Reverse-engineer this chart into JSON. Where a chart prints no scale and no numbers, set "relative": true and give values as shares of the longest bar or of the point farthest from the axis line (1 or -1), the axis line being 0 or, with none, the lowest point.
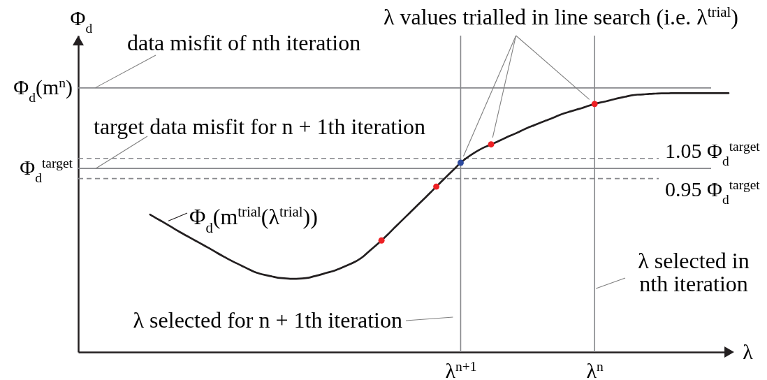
{
  "chart_data": {
    "type": "line",
    "relative": true,
    "xlabel": "λ",
    "ylabel": "Φ$_{d}$",
    "categories": [
      null,
      null,
      null,
      null,
      null,
      null,
      null,
      null,
      null,
      null,
      null,
      null,
      null,
      null,
      null,
      null,
      null,
      null,
      null,
      null,
      null,
      null,
      null,
      null,
      null,
      null,
      null,
      null,
      null,
      null,
      null,
      null,
      null,
      null,
      null,
      null,
      null,
      null,
      null,
      null,
      null,
      null,
      null,
      null,
      null,
      null,
      null,
      null,
      null,
      null,
      null,
      "λ$^{n+1}$",
      null,
      null,
      null,
      null,
      null,
      null,
      null,
      null,
      null,
      null,
      null,
      null,
      null,
      null,
      null,
      null,
      null,
      null,
      null,
      null,
      null,
      "λ$^{n}$",
      null,
      null,
      null,
      null,
      null,
      null,
      null,
      null,
      null,
      null,
      null,
      null,
      null,
      null,
      null,
      null,
      null,
      null,
      null,
      null,
      null,
      null
    ],
    "series": [
      {
        "name": "Φ$_{d}$(m$^{trial}$(λ$^{trial}$))",
        "color": "#231f20",
        "values": [
          0.531,
          0.517,
          0.504,
          0.49,
          0.476,
          0.462,
          0.449,
          0.436,
          0.423,
          0.41,
          0.397,
          0.383,
          0.37,
          0.357,
          0.345,
          0.334,
          0.322,
          0.311,
          0.303,
          0.297,
          0.292,
          0.287,
          0.285,
          0.283,
          0.283,
          0.284,
          0.287,
          0.293,
          0.299,
          0.306,
          0.312,
          0.321,
          0.331,
          0.341,
          0.353,
          0.369,
          0.39,
          0.41,
          0.431,
          0.453,
          0.477,
          0.5,
          0.523,
          0.546,
          0.569,
          0.592,
          0.615,
          0.639,
          0.662,
          0.685,
          0.708,
          0.731,
          0.75,
          0.766,
          0.78,
          0.792,
          0.802,
          0.812,
          0.823,
          0.834,
          0.844,
          0.855,
          0.866,
          0.875,
          0.885,
          0.894,
          0.903,
          0.913,
          0.922,
          0.929,
          0.936,
          0.943,
          0.951,
          0.958,
          0.964,
          0.969,
          0.975,
          0.981,
          0.986,
          0.991,
          0.994,
          0.995,
          0.997,
          0.998,
          0.999,
          0.999,
          1.0,
          1.0,
          1.0,
          1.0,
          1.0,
          1.0,
          1.0,
          1.0,
          1.0,
          1.0
        ]
      },
      {
        "type": "scatter",
        "marker": "circle",
        "color": "#ed2024",
        "values": [
          null,
          null,
          null,
          null,
          null,
          null,
          null,
          null,
          null,
          null,
          null,
          null,
          null,
          null,
          null,
          null,
          null,
          null,
          null,
          null,
          null,
          null,
          null,
          null,
          null,
          null,
          null,
          null,
          null,
          null,
          null,
          null,
          null,
          null,
          null,
          null,
          null,
          null,
          0.431,
          null,
          null,
          null,
          null,
          null,
          null,
          null,
          null,
          0.639,
          null,
          null,
          null,
          null,
          null,
          null,
          null,
          null,
          0.802,
          null,
          null,
          null,
          null,
          null,
          null,
          null,
          null,
          null,
          null,
          null,
          null,
          null,
          null,
          null,
          null,
          0.958,
          null,
          null,
          null,
          null,
          null,
          null,
          null,
          null,
          null,
          null,
          null,
          null,
          null,
          null,
          null,
          null,
          null,
          null,
          null,
          null,
          null,
          null
        ]
      },
      {
        "type": "scatter",
        "marker": "circle",
        "color": "#2e4a9e",
        "values": [
          null,
          null,
          null,
          null,
          null,
          null,
          null,
          null,
          null,
          null,
          null,
          null,
          null,
          null,
          null,
          null,
          null,
          null,
          null,
          null,
          null,
          null,
          null,
          null,
          null,
          null,
          null,
          null,
          null,
          null,
          null,
          null,
          null,
          null,
          null,
          null,
          null,
          null,
          null,
          null,
          null,
          null,
          null,
          null,
          null,
          null,
          null,
          null,
          null,
          null,
          null,
          0.731,
          null,
          null,
          null,
          null,
          null,
          null,
          null,
          null,
          null,
          null,
          null,
          null,
          null,
          null,
          null,
          null,
          null,
          null,
          null,
          null,
          null,
          null,
          null,
          null,
          null,
          null,
          null,
          null,
          null,
          null,
          null,
          null,
          null,
          null,
          null,
          null,
          null,
          null,
          null,
          null,
          null,
          null,
          null,
          null
        ]
      }
    ],
    "ref_lines": [
      {
        "axis": "y",
        "value": 1.02,
        "label": "Φ$_{d}$(m$^{n}$)",
        "color": "#87888c"
      },
      {
        "axis": "y",
        "value": 0.709,
        "label": "Φ$_{d}$$^{target}$",
        "color": "#87888c"
      },
      {
        "axis": "y",
        "value": 0.748,
        "label": "1.05 Φ$_{d}$$^{target}$",
        "color": "#87888c",
        "line_style": "dashed"
      },
      {
        "axis": "y",
        "value": 0.67,
        "label": "0.95 Φ$_{d}$$^{target}$",
        "color": "#87888c",
        "line_style": "dashed"
      },
      {
        "axis": "x",
        "value": "λ$^{n+1}$",
        "color": "#87888c"
      },
      {
        "axis": "x",
        "value": "λ$^{n}$",
        "color": "#87888c"
      }
    ],
    "annotations": [
      {
        "text": "data misfit of nth iteration",
        "y": 1.02
      },
      {
        "text": "target data misfit for n + 1th iteration",
        "y": 0.709
      },
      "λ values trialled in line search (i.e. λ$^{trial}$)",
      {
        "text": "λ selected in\nnth iteration",
        "x": "λ$^{n}$"
      },
      {
        "text": "λ selected for n + 1th iteration",
        "x": "λ$^{n+1}$"
      }
    ]
  }
}
